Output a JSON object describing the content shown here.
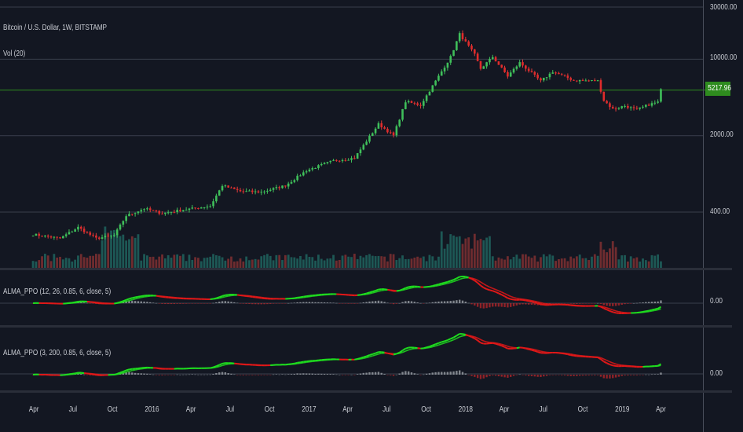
{
  "chart_data": {
    "type": "candlestick",
    "panes": {
      "price": {
        "title": "Bitcoin / U.S. Dollar, 1W, BITSTAMP",
        "volume_label": "Vol (20)",
        "scale": "log",
        "y_ticks": [
          "30000.00",
          "10000.00",
          "2000.00",
          "400.00"
        ],
        "last_price": "5217.96",
        "last_price_value": 5217.96,
        "ylim": [
          150,
          30000
        ],
        "close_path": [
          [
            "2015-03-30",
            250
          ],
          [
            "2015-06-01",
            230
          ],
          [
            "2015-07-13",
            290
          ],
          [
            "2015-08-24",
            230
          ],
          [
            "2015-10-05",
            245
          ],
          [
            "2015-11-02",
            370
          ],
          [
            "2015-12-14",
            430
          ],
          [
            "2016-01-25",
            390
          ],
          [
            "2016-03-07",
            415
          ],
          [
            "2016-05-16",
            455
          ],
          [
            "2016-06-13",
            700
          ],
          [
            "2016-07-25",
            620
          ],
          [
            "2016-09-12",
            610
          ],
          [
            "2016-11-07",
            700
          ],
          [
            "2016-12-26",
            960
          ],
          [
            "2017-02-27",
            1180
          ],
          [
            "2017-04-17",
            1250
          ],
          [
            "2017-06-12",
            2550
          ],
          [
            "2017-07-17",
            2000
          ],
          [
            "2017-08-14",
            4100
          ],
          [
            "2017-09-18",
            3800
          ],
          [
            "2017-10-16",
            5700
          ],
          [
            "2017-11-27",
            10500
          ],
          [
            "2017-12-18",
            17000
          ],
          [
            "2018-01-22",
            11000
          ],
          [
            "2018-02-05",
            8200
          ],
          [
            "2018-03-05",
            10500
          ],
          [
            "2018-04-09",
            7000
          ],
          [
            "2018-05-07",
            9300
          ],
          [
            "2018-06-25",
            6300
          ],
          [
            "2018-07-23",
            7700
          ],
          [
            "2018-09-10",
            6400
          ],
          [
            "2018-11-05",
            6350
          ],
          [
            "2018-11-19",
            4200
          ],
          [
            "2018-12-10",
            3500
          ],
          [
            "2019-01-07",
            3750
          ],
          [
            "2019-02-04",
            3450
          ],
          [
            "2019-03-04",
            3850
          ],
          [
            "2019-03-25",
            4050
          ],
          [
            "2019-04-01",
            5217.96
          ]
        ]
      },
      "volume": {
        "label": "Vol (20)"
      },
      "alma_ppo_1": {
        "label": "ALMA_PPO (12, 26, 0.85, 6, close, 5)",
        "y_tick": "0.00"
      },
      "alma_ppo_2": {
        "label": "ALMA_PPO (3, 200, 0.85, 6, close, 5)",
        "y_tick": "0.00"
      }
    },
    "x_ticks": [
      "Apr",
      "Jul",
      "Oct",
      "2016",
      "Apr",
      "Jul",
      "Oct",
      "2017",
      "Apr",
      "Jul",
      "Oct",
      "2018",
      "Apr",
      "Jul",
      "Oct",
      "2019",
      "Apr"
    ],
    "x_tick_dates": [
      "2015-04-01",
      "2015-07-01",
      "2015-10-01",
      "2016-01-01",
      "2016-04-01",
      "2016-07-01",
      "2016-10-01",
      "2017-01-01",
      "2017-04-01",
      "2017-07-01",
      "2017-10-01",
      "2018-01-01",
      "2018-04-01",
      "2018-07-01",
      "2018-10-01",
      "2019-01-01",
      "2019-04-01"
    ],
    "x_range": [
      "2015-01-12",
      "2019-07-08"
    ],
    "colors": {
      "background": "#131722",
      "up": "#26a69a",
      "down": "#ef5350",
      "ppo_up": "#1fdd1f",
      "ppo_down": "#e01818",
      "price_line": "#2e8b1e",
      "grid": "#363a45"
    }
  }
}
